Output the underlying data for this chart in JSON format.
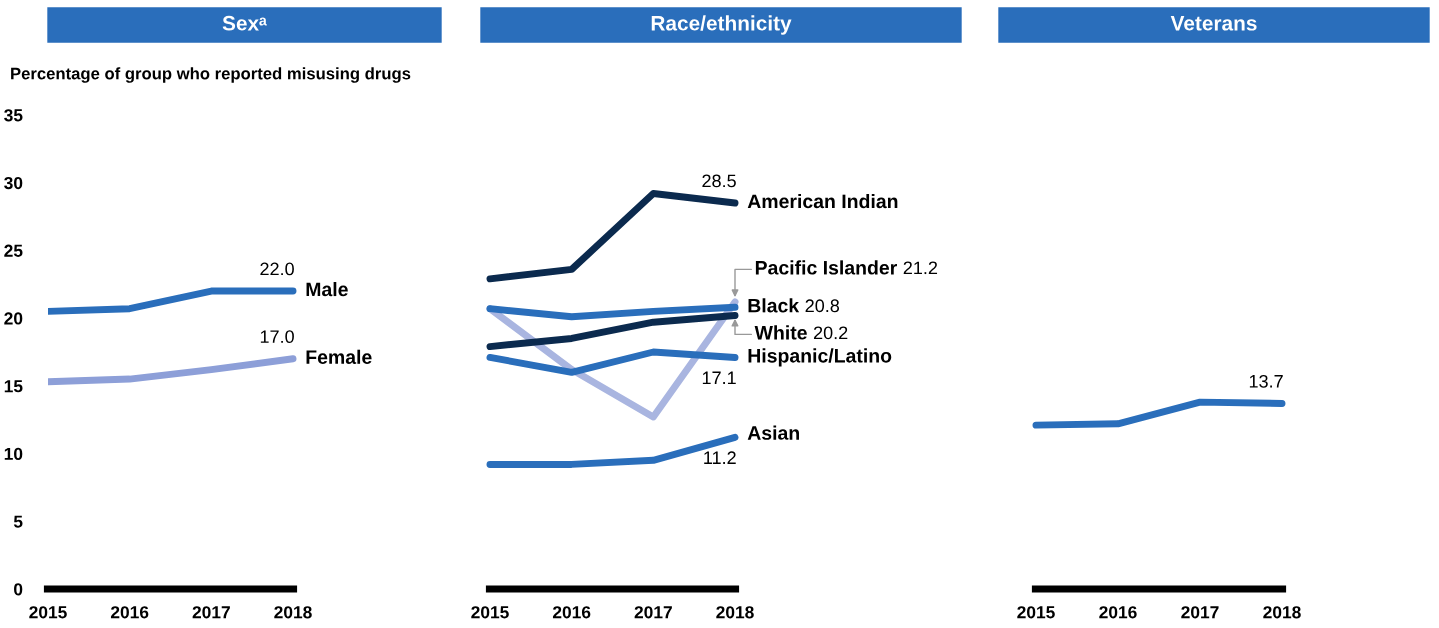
{
  "chart_data": [
    {
      "type": "line",
      "title": "Sexᵃ",
      "ylabel": "Percentage of group who reported misusing drugs",
      "categories": [
        "2015",
        "2016",
        "2017",
        "2018"
      ],
      "ylim": [
        0,
        35
      ],
      "yticks": [
        0,
        5,
        10,
        15,
        20,
        25,
        30,
        35
      ],
      "grid": false,
      "marker": "none",
      "line_style": "solid",
      "series": [
        {
          "name": "Male",
          "color": "#2a6ebb",
          "values": [
            20.5,
            20.7,
            22.0,
            22.0
          ],
          "value_labels": [
            null,
            null,
            null,
            "22.0"
          ]
        },
        {
          "name": "Female",
          "color": "#8d9fd8",
          "values": [
            15.3,
            15.5,
            16.2,
            17.0
          ],
          "value_labels": [
            null,
            null,
            null,
            "17.0"
          ]
        }
      ]
    },
    {
      "type": "line",
      "title": "Race/ethnicity",
      "annotations": [
        "21.2",
        "20.8",
        "20.2"
      ],
      "categories": [
        "2015",
        "2016",
        "2017",
        "2018"
      ],
      "ylim": [
        0,
        35
      ],
      "tick_labels": "x",
      "grid": false,
      "marker": "none",
      "line_style": "solid",
      "series": [
        {
          "name": "American Indian",
          "color": "#0b2a4e",
          "values": [
            22.9,
            23.6,
            29.2,
            28.5
          ],
          "value_labels": [
            null,
            null,
            null,
            "28.5"
          ]
        },
        {
          "name": "Pacific Islander",
          "color": "#a9b5e0",
          "values": [
            20.7,
            16.2,
            12.7,
            21.2
          ]
        },
        {
          "name": "Black",
          "color": "#2a6ebb",
          "values": [
            20.7,
            20.1,
            20.5,
            20.8
          ]
        },
        {
          "name": "White",
          "color": "#0b2a4e",
          "values": [
            17.9,
            18.5,
            19.7,
            20.2
          ]
        },
        {
          "name": "Hispanic/Latino",
          "color": "#2a6ebb",
          "values": [
            17.1,
            16.0,
            17.5,
            17.1
          ],
          "value_labels": [
            null,
            null,
            null,
            "17.1"
          ]
        },
        {
          "name": "Asian",
          "color": "#2a6ebb",
          "values": [
            9.2,
            9.2,
            9.5,
            11.2
          ],
          "value_labels": [
            null,
            null,
            null,
            "11.2"
          ]
        }
      ]
    },
    {
      "type": "line",
      "title": "Veterans",
      "categories": [
        "2015",
        "2016",
        "2017",
        "2018"
      ],
      "ylim": [
        0,
        35
      ],
      "tick_labels": "x",
      "grid": false,
      "marker": "none",
      "line_style": "solid",
      "series": [
        {
          "color": "#2a6ebb",
          "values": [
            12.1,
            12.2,
            13.8,
            13.7
          ],
          "value_labels": [
            null,
            null,
            null,
            "13.7"
          ]
        }
      ]
    }
  ]
}
